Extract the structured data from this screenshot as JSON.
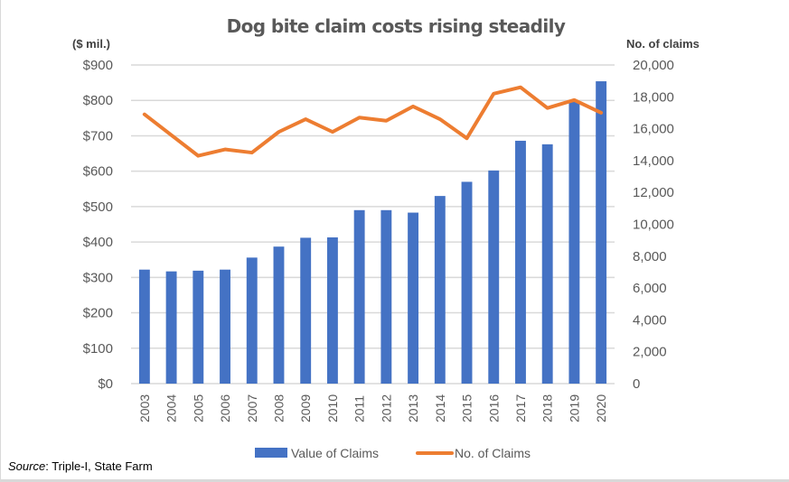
{
  "chart_data": {
    "type": "bar+line",
    "title": "Dog bite claim costs rising steadily",
    "categories": [
      "2003",
      "2004",
      "2005",
      "2006",
      "2007",
      "2008",
      "2009",
      "2010",
      "2011",
      "2012",
      "2013",
      "2014",
      "2015",
      "2016",
      "2017",
      "2018",
      "2019",
      "2020"
    ],
    "series": [
      {
        "name": "Value of Claims",
        "type": "bar",
        "axis": "left",
        "color": "#4472c4",
        "values": [
          322,
          317,
          319,
          322,
          356,
          387,
          412,
          413,
          490,
          490,
          483,
          530,
          570,
          602,
          686,
          676,
          797,
          854
        ]
      },
      {
        "name": "No. of Claims",
        "type": "line",
        "axis": "right",
        "color": "#ed7d31",
        "values": [
          16900,
          15600,
          14300,
          14700,
          14500,
          15800,
          16600,
          15800,
          16700,
          16500,
          17400,
          16600,
          15400,
          18200,
          18600,
          17300,
          17800,
          17000
        ]
      }
    ],
    "left_axis": {
      "label": "($ mil.)",
      "ylim": [
        0,
        900
      ],
      "ticks": [
        0,
        100,
        200,
        300,
        400,
        500,
        600,
        700,
        800,
        900
      ],
      "tick_labels": [
        "$0",
        "$100",
        "$200",
        "$300",
        "$400",
        "$500",
        "$600",
        "$700",
        "$800",
        "$900"
      ]
    },
    "right_axis": {
      "label": "No. of claims",
      "ylim": [
        0,
        20000
      ],
      "ticks": [
        0,
        2000,
        4000,
        6000,
        8000,
        10000,
        12000,
        14000,
        16000,
        18000,
        20000
      ],
      "tick_labels": [
        "0",
        "2,000",
        "4,000",
        "6,000",
        "8,000",
        "10,000",
        "12,000",
        "14,000",
        "16,000",
        "18,000",
        "20,000"
      ]
    },
    "xlabel": "",
    "grid": true,
    "gridline_color": "#d9d9d9",
    "legend": {
      "position": "bottom",
      "entries": [
        "Value of Claims",
        "No. of Claims"
      ]
    }
  },
  "source": {
    "label": "Source",
    "text": ": Triple-I, State Farm"
  }
}
